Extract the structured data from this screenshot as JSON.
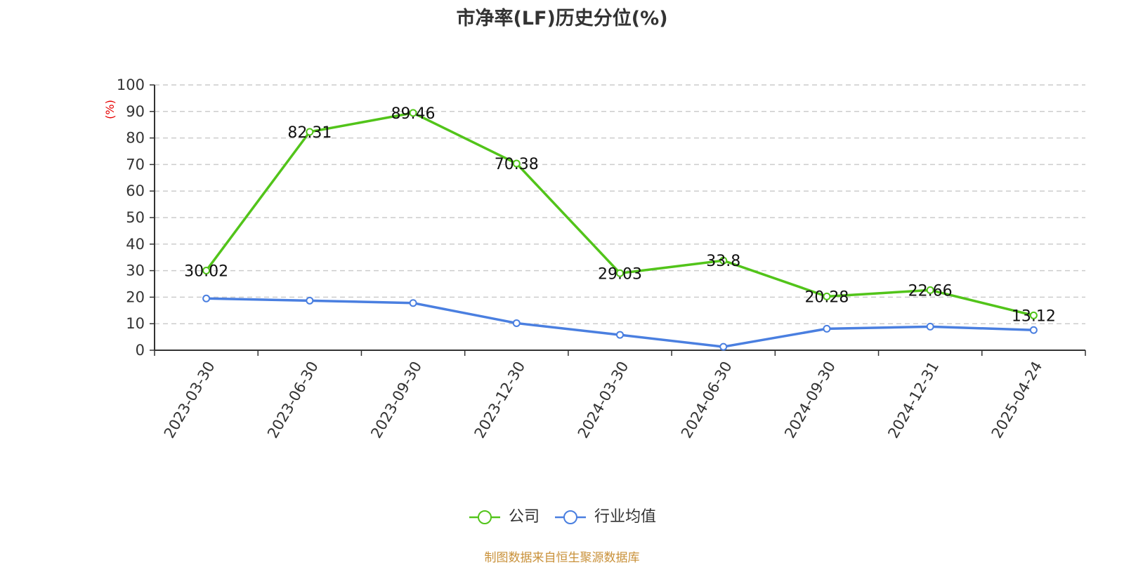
{
  "chart_data": {
    "type": "line",
    "title": "市净率(LF)历史分位(%)",
    "ylabel": "(%)",
    "ylim": [
      0,
      100
    ],
    "yticks": [
      0,
      10,
      20,
      30,
      40,
      50,
      60,
      70,
      80,
      90,
      100
    ],
    "categories": [
      "2023-03-30",
      "2023-06-30",
      "2023-09-30",
      "2023-12-30",
      "2024-03-30",
      "2024-06-30",
      "2024-09-30",
      "2024-12-31",
      "2025-04-24"
    ],
    "grid": true,
    "legend_position": "bottom-center",
    "series": [
      {
        "name": "公司",
        "color": "#52c41a",
        "values": [
          30.02,
          82.31,
          89.46,
          70.38,
          29.03,
          33.8,
          20.28,
          22.66,
          13.12
        ],
        "show_labels": true
      },
      {
        "name": "行业均值",
        "color": "#4a7fe0",
        "values": [
          19.5,
          18.7,
          17.8,
          10.2,
          5.8,
          1.3,
          8.1,
          8.9,
          7.6
        ],
        "show_labels": false
      }
    ]
  },
  "source_note": "制图数据来自恒生聚源数据库",
  "colors": {
    "ylabel": "#e60000",
    "axis": "#333333",
    "grid": "#cccccc"
  }
}
